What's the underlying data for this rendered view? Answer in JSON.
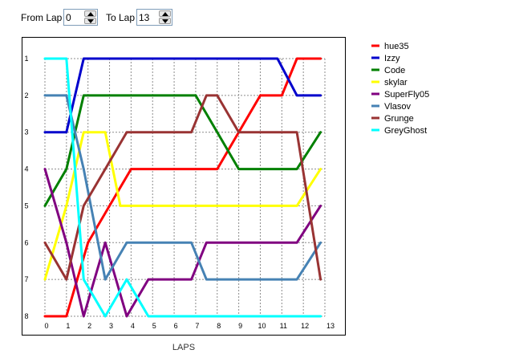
{
  "controls": {
    "from_label": "From Lap",
    "from_value": "0",
    "to_label": "To Lap",
    "to_value": "13"
  },
  "chart_data": {
    "type": "line",
    "x": [
      0,
      1,
      2,
      3,
      4,
      5,
      6,
      7,
      8,
      9,
      10,
      11,
      12,
      13
    ],
    "x_tick_labels": [
      "0",
      "1",
      "2",
      "3",
      "4",
      "5",
      "6",
      "7",
      "8",
      "9",
      "10",
      "11",
      "12",
      "13"
    ],
    "y_tick_labels": [
      "1",
      "2",
      "3",
      "4",
      "5",
      "6",
      "7",
      "8"
    ],
    "xlim": [
      0,
      13
    ],
    "ylim": [
      1,
      8
    ],
    "y_inverted": true,
    "xlabel": "LAPS",
    "ylabel": "",
    "grid": true,
    "legend_position": "right",
    "series": [
      {
        "name": "hue35",
        "color": "#ff0000",
        "points": [
          [
            0,
            8
          ],
          [
            1,
            8
          ],
          [
            2,
            6
          ],
          [
            3,
            5
          ],
          [
            4,
            4
          ],
          [
            5,
            4
          ],
          [
            6,
            4
          ],
          [
            7,
            4
          ],
          [
            8,
            4
          ],
          [
            9,
            3
          ],
          [
            10,
            2
          ],
          [
            11,
            2
          ],
          [
            11.7,
            1
          ],
          [
            12.8,
            1
          ]
        ]
      },
      {
        "name": "Izzy",
        "color": "#0000cc",
        "points": [
          [
            0,
            3
          ],
          [
            1,
            3
          ],
          [
            1.8,
            1
          ],
          [
            3,
            1
          ],
          [
            4,
            1
          ],
          [
            5,
            1
          ],
          [
            6,
            1
          ],
          [
            7,
            1
          ],
          [
            8,
            1
          ],
          [
            9,
            1
          ],
          [
            10,
            1
          ],
          [
            10.8,
            1
          ],
          [
            11.7,
            2
          ],
          [
            12.8,
            2
          ]
        ]
      },
      {
        "name": "Code",
        "color": "#008000",
        "points": [
          [
            0,
            5
          ],
          [
            1,
            4
          ],
          [
            1.8,
            2
          ],
          [
            3,
            2
          ],
          [
            4,
            2
          ],
          [
            5,
            2
          ],
          [
            6,
            2
          ],
          [
            7,
            2
          ],
          [
            8,
            3
          ],
          [
            9,
            4
          ],
          [
            10,
            4
          ],
          [
            11,
            4
          ],
          [
            11.7,
            4
          ],
          [
            12.8,
            3
          ]
        ]
      },
      {
        "name": "skylar",
        "color": "#ffff00",
        "points": [
          [
            0,
            7
          ],
          [
            1,
            5
          ],
          [
            1.8,
            3
          ],
          [
            2.8,
            3
          ],
          [
            3.5,
            5
          ],
          [
            4,
            5
          ],
          [
            5,
            5
          ],
          [
            6,
            5
          ],
          [
            7,
            5
          ],
          [
            8,
            5
          ],
          [
            9,
            5
          ],
          [
            10,
            5
          ],
          [
            11,
            5
          ],
          [
            11.7,
            5
          ],
          [
            12.8,
            4
          ]
        ]
      },
      {
        "name": "SuperFly05",
        "color": "#800080",
        "points": [
          [
            0,
            4
          ],
          [
            1,
            6
          ],
          [
            1.8,
            8
          ],
          [
            2.8,
            6
          ],
          [
            3.8,
            8
          ],
          [
            4.8,
            7
          ],
          [
            6,
            7
          ],
          [
            6.8,
            7
          ],
          [
            7.5,
            6
          ],
          [
            8,
            6
          ],
          [
            9,
            6
          ],
          [
            10,
            6
          ],
          [
            11,
            6
          ],
          [
            11.7,
            6
          ],
          [
            12.8,
            5
          ]
        ]
      },
      {
        "name": "Vlasov",
        "color": "#4682b4",
        "points": [
          [
            0,
            2
          ],
          [
            1,
            2
          ],
          [
            1.8,
            4
          ],
          [
            2.8,
            7
          ],
          [
            3.8,
            6
          ],
          [
            4.8,
            6
          ],
          [
            6,
            6
          ],
          [
            6.8,
            6
          ],
          [
            7.5,
            7
          ],
          [
            8,
            7
          ],
          [
            9,
            7
          ],
          [
            10,
            7
          ],
          [
            11,
            7
          ],
          [
            11.7,
            7
          ],
          [
            12.8,
            6
          ]
        ]
      },
      {
        "name": "Grunge",
        "color": "#993333",
        "points": [
          [
            0,
            6
          ],
          [
            1,
            7
          ],
          [
            1.8,
            5
          ],
          [
            2.8,
            4
          ],
          [
            3.8,
            3
          ],
          [
            5,
            3
          ],
          [
            6,
            3
          ],
          [
            6.8,
            3
          ],
          [
            7.5,
            2
          ],
          [
            8,
            2
          ],
          [
            9,
            3
          ],
          [
            10,
            3
          ],
          [
            11,
            3
          ],
          [
            11.7,
            3
          ],
          [
            12.8,
            7
          ]
        ]
      },
      {
        "name": "GreyGhost",
        "color": "#00ffff",
        "points": [
          [
            0,
            1
          ],
          [
            1,
            1
          ],
          [
            1.8,
            7
          ],
          [
            2.8,
            8
          ],
          [
            3.8,
            7
          ],
          [
            4.8,
            8
          ],
          [
            6,
            8
          ],
          [
            7,
            8
          ],
          [
            8,
            8
          ],
          [
            9,
            8
          ],
          [
            10,
            8
          ],
          [
            11,
            8
          ],
          [
            11.7,
            8
          ],
          [
            12.8,
            8
          ]
        ]
      }
    ]
  }
}
